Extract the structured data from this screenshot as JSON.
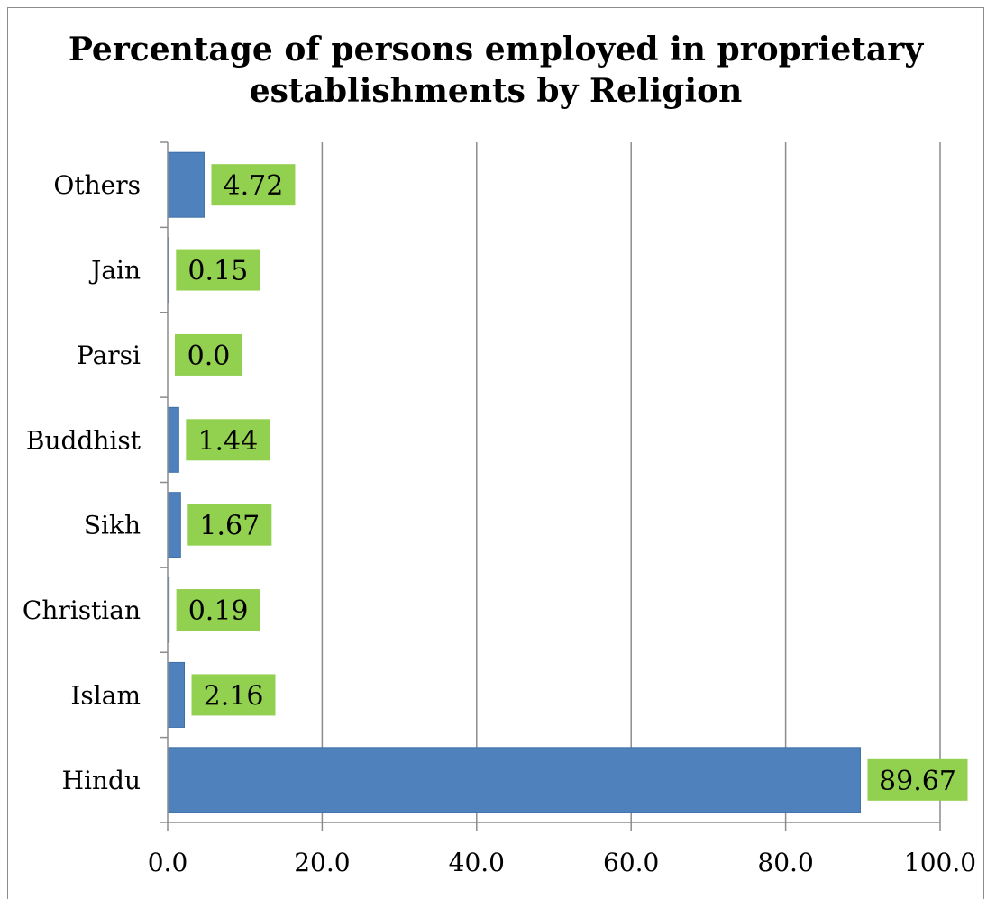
{
  "chart_data": {
    "type": "bar",
    "orientation": "horizontal",
    "title": "Percentage of persons employed in proprietary establishments by Religion",
    "xlabel": "",
    "ylabel": "",
    "categories": [
      "Hindu",
      "Islam",
      "Christian",
      "Sikh",
      "Buddhist",
      "Parsi",
      "Jain",
      "Others"
    ],
    "values": [
      89.67,
      2.16,
      0.19,
      1.67,
      1.44,
      0.0,
      0.15,
      4.72
    ],
    "data_labels": [
      "89.67",
      "2.16",
      "0.19",
      "1.67",
      "1.44",
      "0.0",
      "0.15",
      "4.72"
    ],
    "xlim": [
      0,
      100
    ],
    "x_ticks": [
      "0.0",
      "20.0",
      "40.0",
      "60.0",
      "80.0",
      "100.0"
    ],
    "x_tick_values": [
      0,
      20,
      40,
      60,
      80,
      100
    ],
    "grid": "vertical",
    "legend": "none",
    "colors": {
      "bar": "#4f81bd",
      "bar_edge": "#3d6fa8",
      "label_bg": "#92d050",
      "grid": "#8c8c8c",
      "axis": "#8c8c8c",
      "frame": "#8c8c8c"
    }
  }
}
